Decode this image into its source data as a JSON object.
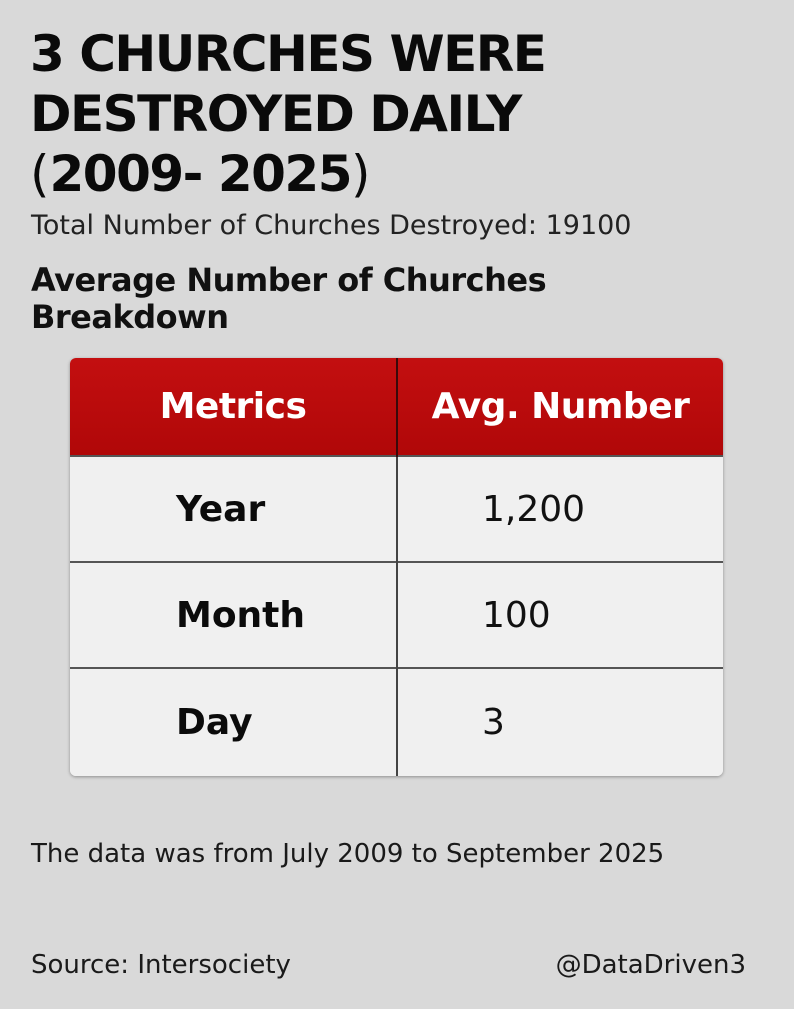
{
  "headline": {
    "line1": "3 CHURCHES WERE",
    "line2": "DESTROYED DAILY",
    "paren_open": "(",
    "years": "2009- 2025",
    "paren_close": ")"
  },
  "total_text": "Total Number of Churches Destroyed: 19100",
  "subheading": {
    "line1": "Average Number of Churches",
    "line2": "Breakdown"
  },
  "table": {
    "header_color": "#c00a0b",
    "headers": [
      "Metrics",
      "Avg. Number"
    ],
    "rows": [
      {
        "metric": "Year",
        "value": "1,200"
      },
      {
        "metric": "Month",
        "value": "100"
      },
      {
        "metric": "Day",
        "value": "3"
      }
    ]
  },
  "footnote": "The data was from July 2009 to September 2025",
  "source": "Source: Intersociety",
  "handle": "@DataDriven3",
  "colors": {
    "background": "#d9d9d9",
    "header_red": "#c00a0b",
    "text": "#0d0d0d"
  }
}
